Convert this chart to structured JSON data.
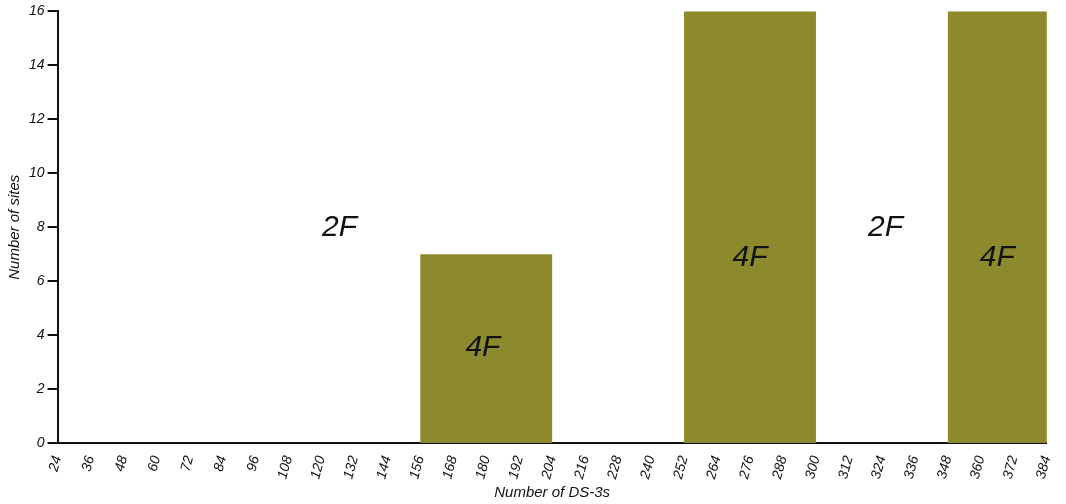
{
  "chart_data": {
    "type": "histogram",
    "xlabel": "Number of DS-3s",
    "ylabel": "Number of sites",
    "bins": [
      156,
      204,
      252,
      300,
      348,
      384
    ],
    "values": [
      7,
      0,
      16,
      0,
      16
    ],
    "color": "#8c8a2c",
    "xlim": [
      24,
      384
    ],
    "xticks": [
      24,
      36,
      48,
      60,
      72,
      84,
      96,
      108,
      120,
      132,
      144,
      156,
      168,
      180,
      192,
      204,
      216,
      228,
      240,
      252,
      264,
      276,
      288,
      300,
      312,
      324,
      336,
      348,
      360,
      372,
      384
    ],
    "ylim": [
      0,
      16
    ],
    "yticks": [
      0,
      2,
      4,
      6,
      8,
      10,
      12,
      14,
      16
    ],
    "grid": false,
    "legend": false,
    "annotations": [
      "2F",
      "4F",
      "4F",
      "2F",
      "4F"
    ]
  }
}
